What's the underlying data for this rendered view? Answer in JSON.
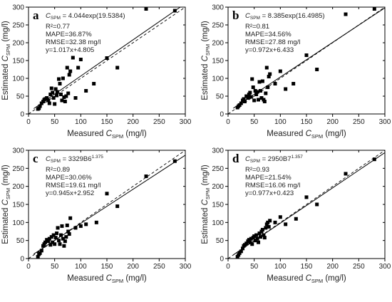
{
  "chart_data": [
    {
      "type": "scatter",
      "label": "a",
      "formula": {
        "prefix": "C",
        "sub": "SPM",
        "rest": " = 4.044exp(19.5384)",
        "sup": ""
      },
      "stats": [
        "R²=0.77",
        "MAPE=36.87%",
        "RMSE=32.38 mg/l",
        "y=1.017x+4.805"
      ],
      "fit": {
        "slope": 1.017,
        "intercept": 4.805
      },
      "xlabel": {
        "pre": "Measured ",
        "sym": "C",
        "sub": "SPM",
        "post": " (mg/l)"
      },
      "ylabel": {
        "pre": "Estimated ",
        "sym": "C",
        "sub": "SPM",
        "post": " (mg/l)"
      },
      "xlim": [
        0,
        300
      ],
      "ylim": [
        0,
        300
      ],
      "xticks": [
        0,
        50,
        100,
        150,
        200,
        250,
        300
      ],
      "yticks": [
        0,
        50,
        100,
        150,
        200,
        250,
        300
      ],
      "points": [
        [
          18,
          14
        ],
        [
          20,
          16
        ],
        [
          22,
          22
        ],
        [
          25,
          30
        ],
        [
          28,
          35
        ],
        [
          30,
          40
        ],
        [
          32,
          42
        ],
        [
          35,
          45
        ],
        [
          38,
          38
        ],
        [
          40,
          30
        ],
        [
          42,
          55
        ],
        [
          44,
          72
        ],
        [
          46,
          60
        ],
        [
          48,
          45
        ],
        [
          50,
          28
        ],
        [
          52,
          70
        ],
        [
          54,
          52
        ],
        [
          55,
          62
        ],
        [
          58,
          98
        ],
        [
          60,
          85
        ],
        [
          62,
          55
        ],
        [
          64,
          38
        ],
        [
          66,
          100
        ],
        [
          68,
          47
        ],
        [
          70,
          35
        ],
        [
          72,
          50
        ],
        [
          74,
          130
        ],
        [
          76,
          58
        ],
        [
          78,
          110
        ],
        [
          80,
          120
        ],
        [
          85,
          158
        ],
        [
          90,
          45
        ],
        [
          95,
          130
        ],
        [
          100,
          153
        ],
        [
          110,
          65
        ],
        [
          125,
          85
        ],
        [
          150,
          157
        ],
        [
          170,
          130
        ],
        [
          225,
          295
        ],
        [
          280,
          290
        ]
      ]
    },
    {
      "type": "scatter",
      "label": "b",
      "formula": {
        "prefix": "C",
        "sub": "SPM",
        "rest": " = 8.385exp(16.4985)",
        "sup": ""
      },
      "stats": [
        "R²=0.81",
        "MAPE=34.56%",
        "RMSE=27.88 mg/l",
        "y=0.972x+6.433"
      ],
      "fit": {
        "slope": 0.972,
        "intercept": 6.433
      },
      "xlabel": {
        "pre": "Measured ",
        "sym": "C",
        "sub": "SPM",
        "post": " (mg/l)"
      },
      "ylabel": {
        "pre": "Estimated ",
        "sym": "C",
        "sub": "SPM",
        "post": " (mg/l)"
      },
      "xlim": [
        0,
        300
      ],
      "ylim": [
        0,
        300
      ],
      "xticks": [
        0,
        50,
        100,
        150,
        200,
        250,
        300
      ],
      "yticks": [
        0,
        50,
        100,
        150,
        200,
        250,
        300
      ],
      "points": [
        [
          18,
          18
        ],
        [
          20,
          22
        ],
        [
          22,
          25
        ],
        [
          25,
          30
        ],
        [
          28,
          38
        ],
        [
          30,
          42
        ],
        [
          32,
          35
        ],
        [
          35,
          50
        ],
        [
          38,
          45
        ],
        [
          40,
          55
        ],
        [
          42,
          60
        ],
        [
          44,
          48
        ],
        [
          46,
          98
        ],
        [
          48,
          75
        ],
        [
          50,
          38
        ],
        [
          52,
          65
        ],
        [
          54,
          55
        ],
        [
          56,
          62
        ],
        [
          58,
          40
        ],
        [
          60,
          90
        ],
        [
          62,
          65
        ],
        [
          64,
          45
        ],
        [
          66,
          92
        ],
        [
          68,
          40
        ],
        [
          70,
          35
        ],
        [
          72,
          58
        ],
        [
          74,
          130
        ],
        [
          76,
          75
        ],
        [
          78,
          105
        ],
        [
          80,
          112
        ],
        [
          90,
          85
        ],
        [
          100,
          120
        ],
        [
          110,
          70
        ],
        [
          125,
          85
        ],
        [
          150,
          165
        ],
        [
          170,
          125
        ],
        [
          225,
          280
        ],
        [
          280,
          295
        ]
      ]
    },
    {
      "type": "scatter",
      "label": "c",
      "formula": {
        "prefix": "C",
        "sub": "SPM",
        "rest": " = 3329B6",
        "sup": "1.375"
      },
      "stats": [
        "R²=0.89",
        "MAPE=30.06%",
        "RMSE=19.61 mg/l",
        "y=0.945x+2.952"
      ],
      "fit": {
        "slope": 0.945,
        "intercept": 2.952
      },
      "xlabel": {
        "pre": "Measured ",
        "sym": "C",
        "sub": "SPM",
        "post": " (mg/l)"
      },
      "ylabel": {
        "pre": "Estimated ",
        "sym": "C",
        "sub": "SPM",
        "post": " (mg/l)"
      },
      "xlim": [
        0,
        300
      ],
      "ylim": [
        0,
        300
      ],
      "xticks": [
        0,
        50,
        100,
        150,
        200,
        250,
        300
      ],
      "yticks": [
        0,
        50,
        100,
        150,
        200,
        250,
        300
      ],
      "points": [
        [
          18,
          5
        ],
        [
          20,
          12
        ],
        [
          22,
          15
        ],
        [
          25,
          22
        ],
        [
          28,
          35
        ],
        [
          30,
          40
        ],
        [
          32,
          45
        ],
        [
          35,
          52
        ],
        [
          38,
          48
        ],
        [
          40,
          55
        ],
        [
          42,
          38
        ],
        [
          44,
          60
        ],
        [
          46,
          45
        ],
        [
          48,
          65
        ],
        [
          50,
          40
        ],
        [
          52,
          58
        ],
        [
          54,
          70
        ],
        [
          56,
          85
        ],
        [
          58,
          50
        ],
        [
          60,
          40
        ],
        [
          62,
          65
        ],
        [
          64,
          90
        ],
        [
          66,
          55
        ],
        [
          68,
          35
        ],
        [
          70,
          48
        ],
        [
          72,
          60
        ],
        [
          74,
          92
        ],
        [
          76,
          75
        ],
        [
          78,
          68
        ],
        [
          80,
          112
        ],
        [
          90,
          85
        ],
        [
          100,
          90
        ],
        [
          110,
          95
        ],
        [
          130,
          100
        ],
        [
          150,
          180
        ],
        [
          170,
          145
        ],
        [
          225,
          228
        ],
        [
          280,
          270
        ]
      ]
    },
    {
      "type": "scatter",
      "label": "d",
      "formula": {
        "prefix": "C",
        "sub": "SPM",
        "rest": " = 2950B7",
        "sup": "1.357"
      },
      "stats": [
        "R²=0.93",
        "MAPE=21.54%",
        "RMSE=16.06 mg/l",
        "y=0.977x+0.423"
      ],
      "fit": {
        "slope": 0.977,
        "intercept": 0.423
      },
      "xlabel": {
        "pre": "Measured ",
        "sym": "C",
        "sub": "SPM",
        "post": " (mg/l)"
      },
      "ylabel": {
        "pre": "Estimated ",
        "sym": "C",
        "sub": "SPM",
        "post": " (mg/l)"
      },
      "xlim": [
        0,
        300
      ],
      "ylim": [
        0,
        300
      ],
      "xticks": [
        0,
        50,
        100,
        150,
        200,
        250,
        300
      ],
      "yticks": [
        0,
        50,
        100,
        150,
        200,
        250,
        300
      ],
      "points": [
        [
          18,
          5
        ],
        [
          20,
          10
        ],
        [
          22,
          15
        ],
        [
          25,
          20
        ],
        [
          28,
          28
        ],
        [
          30,
          35
        ],
        [
          32,
          38
        ],
        [
          35,
          42
        ],
        [
          38,
          48
        ],
        [
          40,
          52
        ],
        [
          42,
          45
        ],
        [
          44,
          55
        ],
        [
          46,
          40
        ],
        [
          48,
          58
        ],
        [
          50,
          62
        ],
        [
          52,
          50
        ],
        [
          54,
          65
        ],
        [
          56,
          55
        ],
        [
          58,
          45
        ],
        [
          60,
          70
        ],
        [
          62,
          60
        ],
        [
          64,
          75
        ],
        [
          66,
          80
        ],
        [
          68,
          65
        ],
        [
          70,
          58
        ],
        [
          72,
          85
        ],
        [
          74,
          95
        ],
        [
          76,
          100
        ],
        [
          78,
          88
        ],
        [
          80,
          105
        ],
        [
          90,
          100
        ],
        [
          100,
          115
        ],
        [
          110,
          95
        ],
        [
          130,
          110
        ],
        [
          150,
          170
        ],
        [
          170,
          150
        ],
        [
          225,
          235
        ],
        [
          280,
          275
        ]
      ]
    }
  ]
}
